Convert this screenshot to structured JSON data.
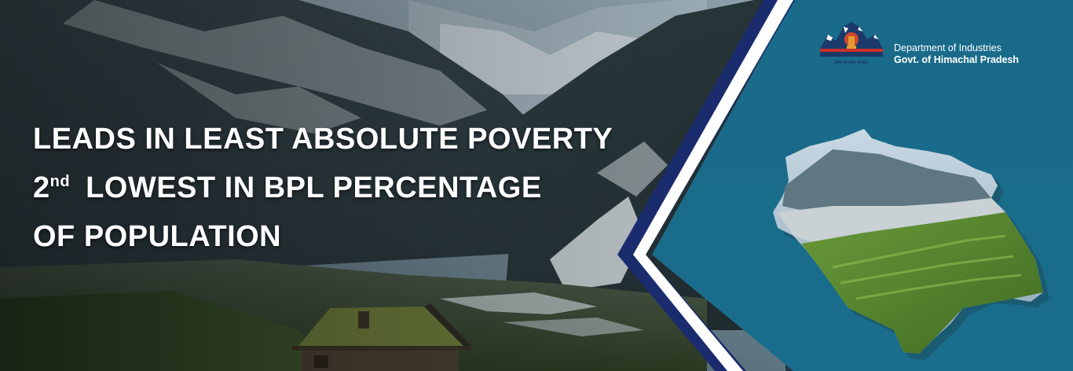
{
  "headline": {
    "line1": "LEADS IN LEAST ABSOLUTE POVERTY",
    "line2_prefix": "2",
    "line2_sup": "nd",
    "line2_rest": "LOWEST IN BPL PERCENTAGE",
    "line3": "OF POPULATION"
  },
  "logo": {
    "department": "Department of Industries",
    "government": "Govt. of Himachal Pradesh",
    "emblem_caption": "हिमाचल प्रदेश सरकार",
    "icon": "hp-government-emblem"
  },
  "colors": {
    "panel_teal": "#1b6f8f",
    "border_navy": "#1a2b6e",
    "border_white": "#ffffff",
    "headline_text": "#ffffff"
  },
  "images": {
    "background": "mountain-valley-with-cabin",
    "map": "himachal-pradesh-map-with-landscape"
  }
}
